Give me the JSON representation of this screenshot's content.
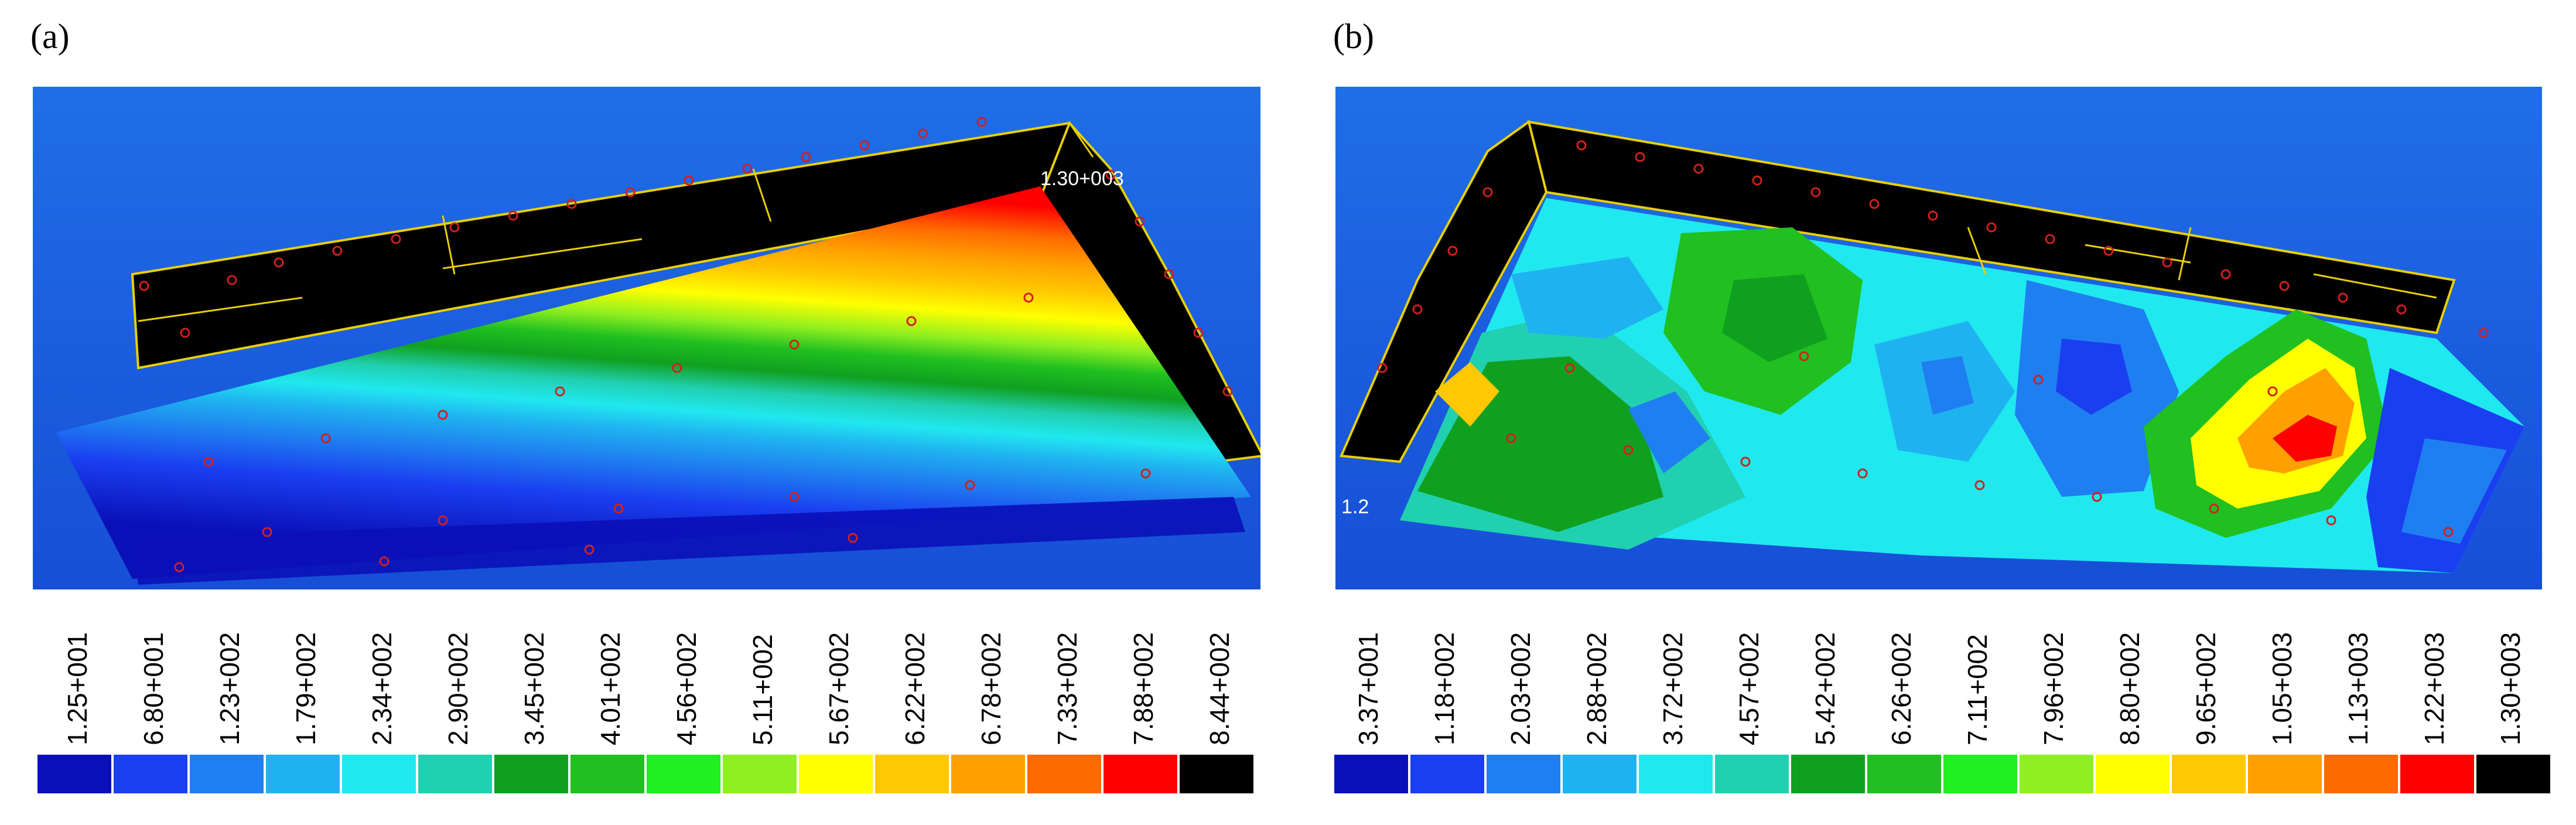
{
  "panels": [
    {
      "label": "(a)",
      "overlay_label": "1.30+003",
      "legend": {
        "ticks": [
          "1.25+001",
          "6.80+001",
          "1.23+002",
          "1.79+002",
          "2.34+002",
          "2.90+002",
          "3.45+002",
          "4.01+002",
          "4.56+002",
          "5.11+002",
          "5.67+002",
          "6.22+002",
          "6.78+002",
          "7.33+002",
          "7.88+002",
          "8.44+002"
        ],
        "colors": [
          "#0a10b8",
          "#1a3ff0",
          "#1f7ff0",
          "#1fb2f0",
          "#20e8ef",
          "#20d0b0",
          "#10a020",
          "#20c020",
          "#20ef20",
          "#90ef20",
          "#ffff00",
          "#ffc800",
          "#ffa000",
          "#ff6a00",
          "#ff0000",
          "#000000"
        ]
      }
    },
    {
      "label": "(b)",
      "overlay_label": "1.2",
      "legend": {
        "ticks": [
          "3.37+001",
          "1.18+002",
          "2.03+002",
          "2.88+002",
          "3.72+002",
          "4.57+002",
          "5.42+002",
          "6.26+002",
          "7.11+002",
          "7.96+002",
          "8.80+002",
          "9.65+002",
          "1.05+003",
          "1.13+003",
          "1.22+003",
          "1.30+003"
        ],
        "colors": [
          "#0a10b8",
          "#1a3ff0",
          "#1f7ff0",
          "#1fb2f0",
          "#20e8ef",
          "#20d0b0",
          "#10a020",
          "#20c020",
          "#20ef20",
          "#90ef20",
          "#ffff00",
          "#ffc800",
          "#ffa000",
          "#ff6a00",
          "#ff0000",
          "#000000"
        ]
      }
    }
  ]
}
